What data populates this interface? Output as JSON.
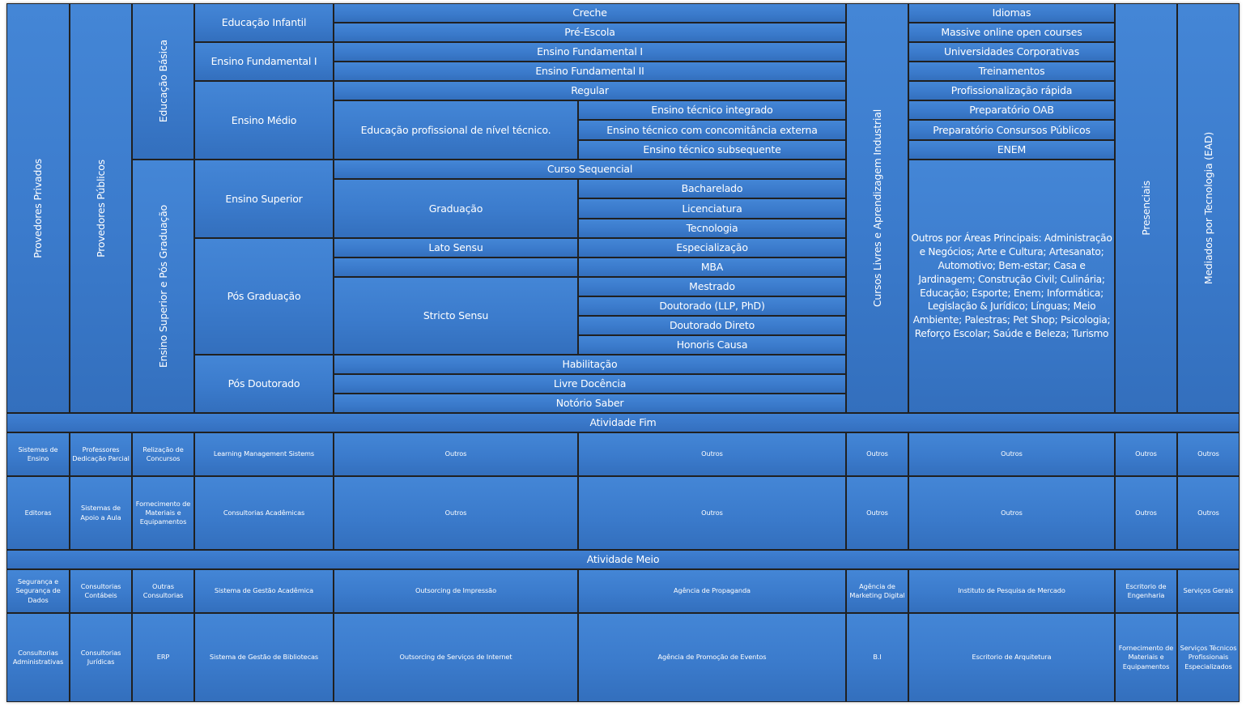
{
  "providers": {
    "private": "Provedores Privados",
    "public": "Provedores Públicos"
  },
  "groups": {
    "basic": "Educação Básica",
    "higher": "Ensino Superior e Pós Graduação",
    "free": "Cursos Livres e Aprendizagem Industrial",
    "presential": "Presenciais",
    "ead": "Mediados por Tecnologia (EAD)"
  },
  "levels": {
    "infantil": "Educação Infantil",
    "fund": "Ensino Fundamental I",
    "medio": "Ensino Médio",
    "superior": "Ensino Superior",
    "pos": "Pós Graduação",
    "posdoc": "Pós Doutorado"
  },
  "items": {
    "creche": "Creche",
    "preescola": "Pré-Escola",
    "fund1": "Ensino Fundamental I",
    "fund2": "Ensino Fundamental II",
    "regular": "Regular",
    "edu_prof": "Educação profissional de nível técnico.",
    "tec_integrado": "Ensino técnico integrado",
    "tec_concom": "Ensino técnico com concomitância externa",
    "tec_subseq": "Ensino técnico subsequente",
    "curso_seq": "Curso Sequencial",
    "graduacao": "Graduação",
    "bacharelado": "Bacharelado",
    "licenciatura": "Licenciatura",
    "tecnologia": "Tecnologia",
    "lato": "Lato Sensu",
    "especializacao": "Especialização",
    "mba": "MBA",
    "stricto": "Stricto Sensu",
    "mestrado": "Mestrado",
    "doutorado": "Doutorado (LLP, PhD)",
    "doutorado_direto": "Doutorado Direto",
    "honoris": "Honoris Causa",
    "habilitacao": "Habilitação",
    "livre_docencia": "Livre Docência",
    "notorio": "Notório Saber"
  },
  "free_courses": {
    "idiomas": "Idiomas",
    "mooc": "Massive online open courses",
    "univ_corp": "Universidades Corporativas",
    "treinamentos": "Treinamentos",
    "prof_rapida": "Profissionalização rápida",
    "oab": "Preparatório OAB",
    "concursos": "Preparatório Consursos Públicos",
    "enem": "ENEM",
    "outros_areas": "Outros por Áreas Principais: Administração e Negócios; Arte e Cultura; Artesanato; Automotivo; Bem-estar; Casa e Jardinagem; Construção Civil; Culinária; Educação; Esporte; Enem; Informática; Legislação & Jurídico; Línguas;  Meio Ambiente; Palestras; Pet Shop; Psicologia; Reforço Escolar; Saúde e Beleza; Turismo"
  },
  "atividade_fim": {
    "title": "Atividade Fim",
    "row1": [
      "Sistemas de Ensino",
      "Professores Dedicação Parcial",
      "Relização de Concursos",
      "Learning  Management  Sistems",
      "Outros",
      "Outros",
      "Outros",
      "Outros",
      "Outros",
      "Outros"
    ],
    "row2": [
      "Editoras",
      "Sistemas de Apoio a Aula",
      "Fornecimento de Materiais e Equipamentos",
      "Consultorias  Acadêmicas",
      "Outros",
      "Outros",
      "Outros",
      "Outros",
      "Outros",
      "Outros"
    ]
  },
  "atividade_meio": {
    "title": "Atividade Meio",
    "row1": [
      "Segurança e Segurança de Dados",
      "Consultorias Contábeis",
      "Outras Consultorias",
      "Sistema de Gestão Acadêmica",
      "Outsorcing  de Impressão",
      "Agência de Propaganda",
      "Agência de Marketing Digital",
      "Instituto  de Pesquisa  de Mercado",
      "Escritorio de Engenharia",
      "Serviços Gerais"
    ],
    "row2": [
      "Consultorias Administrativas",
      "Consultorias Jurídicas",
      "ERP",
      "Sistema de Gestão de Bibliotecas",
      "Outsorcing  de Serviços de Internet",
      "Agência de Promoção  de Eventos",
      "B.I",
      "Escritorio  de Arquitetura",
      "Fornecimento de Materiais e Equipamentos",
      "Serviços Técnicos Profissionais Especializados"
    ]
  }
}
